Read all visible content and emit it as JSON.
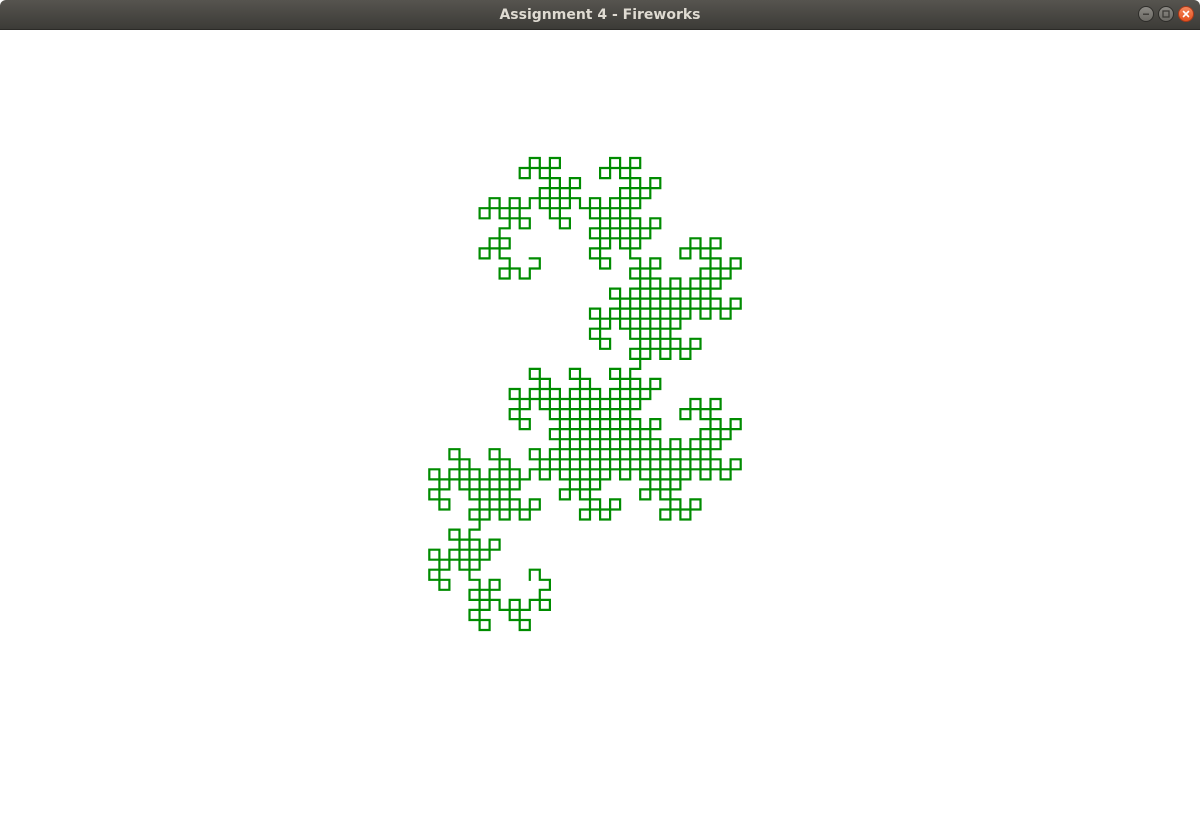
{
  "window": {
    "title": "Assignment 4 - Fireworks",
    "controls": [
      {
        "name": "minimize",
        "icon": "minimize-icon"
      },
      {
        "name": "maximize",
        "icon": "maximize-icon"
      },
      {
        "name": "close",
        "icon": "close-icon"
      }
    ]
  },
  "drawing": {
    "description_icon": "dragon-curve",
    "stroke_color": "#008c00",
    "background_color": "#ffffff",
    "fractal": "dragon-curve",
    "iterations": 10
  }
}
